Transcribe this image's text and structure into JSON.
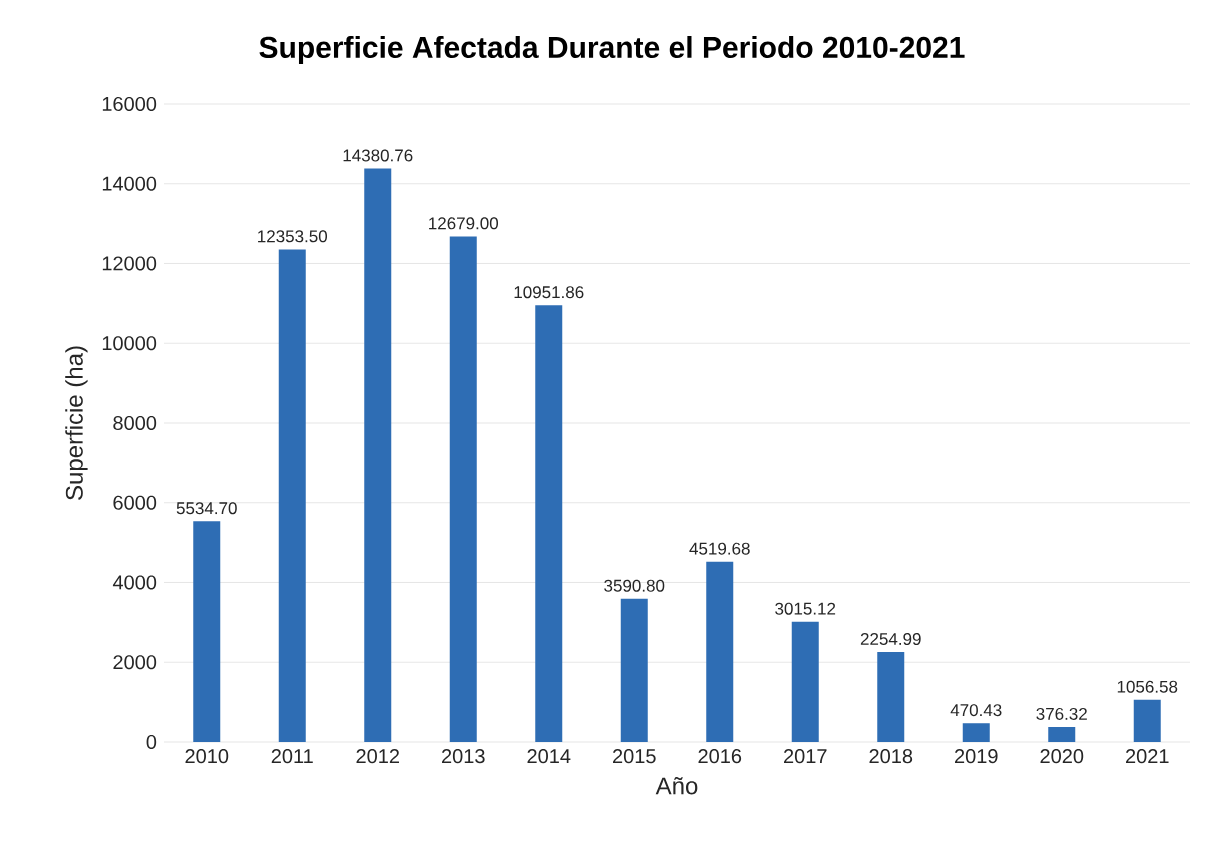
{
  "chart_data": {
    "type": "bar",
    "title": "Superficie Afectada Durante el Periodo 2010-2021",
    "xlabel": "Año",
    "ylabel": "Superficie (ha)",
    "categories": [
      "2010",
      "2011",
      "2012",
      "2013",
      "2014",
      "2015",
      "2016",
      "2017",
      "2018",
      "2019",
      "2020",
      "2021"
    ],
    "values": [
      5534.7,
      12353.5,
      14380.76,
      12679.0,
      10951.86,
      3590.8,
      4519.68,
      3015.12,
      2254.99,
      470.43,
      376.32,
      1056.58
    ],
    "value_labels": [
      "5534.70",
      "12353.50",
      "14380.76",
      "12679.00",
      "10951.86",
      "3590.80",
      "4519.68",
      "3015.12",
      "2254.99",
      "470.43",
      "376.32",
      "1056.58"
    ],
    "color": "#2e6db4",
    "ylim": [
      0,
      16000
    ],
    "yticks": [
      0,
      2000,
      4000,
      6000,
      8000,
      10000,
      12000,
      14000,
      16000
    ],
    "grid": "y"
  }
}
